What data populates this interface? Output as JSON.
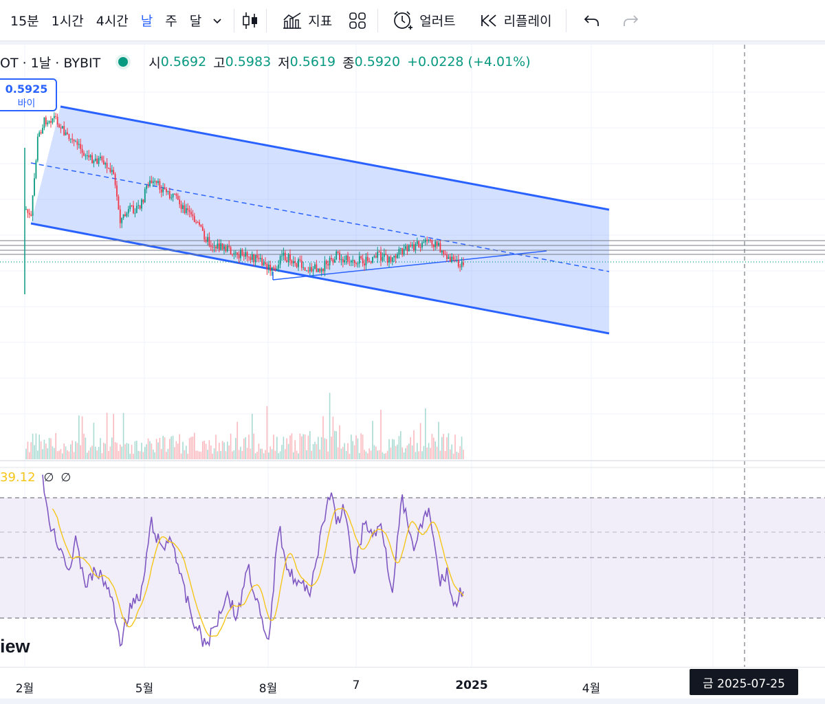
{
  "toolbar": {
    "timeframes": [
      "15분",
      "1시간",
      "4시간",
      "날",
      "주",
      "달"
    ],
    "active_timeframe": "날",
    "indicators_label": "지표",
    "alert_label": "얼러트",
    "replay_label": "리플레이"
  },
  "legend": {
    "symbol": "OT · 1날 · BYBIT",
    "open_key": "시",
    "open": "0.5692",
    "high_key": "고",
    "high": "0.5983",
    "low_key": "저",
    "low": "0.5619",
    "close_key": "종",
    "close": "0.5920",
    "change": "+0.0228 (+4.01%)"
  },
  "price_badge": {
    "price": "0.5925",
    "side": "바이"
  },
  "rsi": {
    "value": "39.12",
    "extra1": "∅",
    "extra2": "∅"
  },
  "watermark": "iew",
  "time_axis": {
    "labels": [
      "2월",
      "5월",
      "8월",
      "7",
      "2025",
      "4월"
    ]
  },
  "crosshair_date": "금 2025-07-25",
  "colors": {
    "up": "#089981",
    "down": "#f23645",
    "channel": "#2962ff",
    "rsi": "#7e57c2",
    "rsi_ma": "#f5c518"
  },
  "chart_data": {
    "type": "candlestick",
    "last_close": 0.592,
    "open": 0.5692,
    "high": 0.5983,
    "low": 0.5619,
    "close": 0.592,
    "rsi_value": 39.12
  }
}
